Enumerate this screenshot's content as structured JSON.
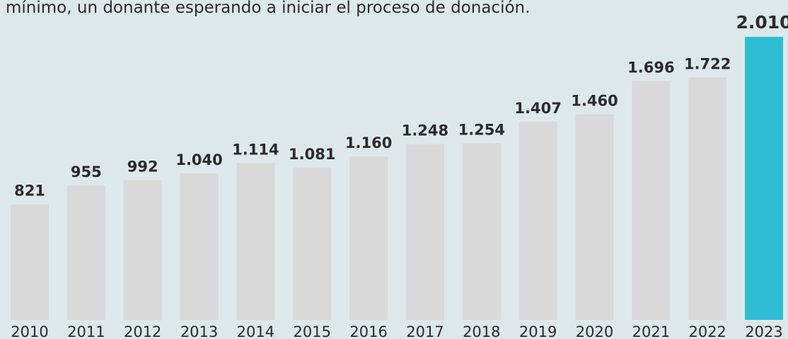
{
  "chart_data": {
    "type": "bar",
    "subtitle": "mínimo, un donante esperando a iniciar el proceso de donación.",
    "categories": [
      "2010",
      "2011",
      "2012",
      "2013",
      "2014",
      "2015",
      "2016",
      "2017",
      "2018",
      "2019",
      "2020",
      "2021",
      "2022",
      "2023"
    ],
    "values": [
      821,
      955,
      992,
      1040,
      1114,
      1081,
      1160,
      1248,
      1254,
      1407,
      1460,
      1696,
      1722,
      2010
    ],
    "value_labels": [
      "821",
      "955",
      "992",
      "1.040",
      "1.114",
      "1.081",
      "1.160",
      "1.248",
      "1.254",
      "1.407",
      "1.460",
      "1.696",
      "1.722",
      "2.010"
    ],
    "colors": [
      "#d9d9d9",
      "#d9d9d9",
      "#d9d9d9",
      "#d9d9d9",
      "#d9d9d9",
      "#d9d9d9",
      "#d9d9d9",
      "#d9d9d9",
      "#d9d9d9",
      "#d9d9d9",
      "#d9d9d9",
      "#d9d9d9",
      "#d9d9d9",
      "#2fbdd3"
    ]
  }
}
